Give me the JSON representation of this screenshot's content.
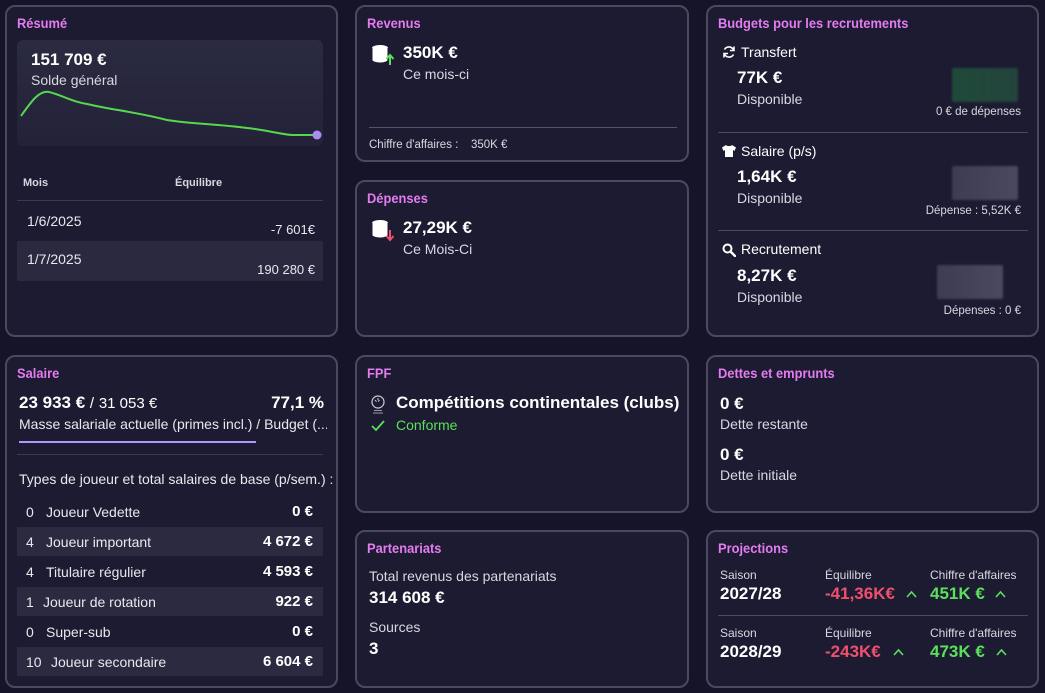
{
  "resume": {
    "title": "Résumé",
    "balance": "151 709 €",
    "balance_label": "Solde général",
    "col_month": "Mois",
    "col_balance": "Équilibre",
    "rows": [
      {
        "month": "1/6/2025",
        "value": "-7 601€"
      },
      {
        "month": "1/7/2025",
        "value": "190 280 €"
      }
    ],
    "line_color": "#56d84e",
    "dot_color": "#a98ef0"
  },
  "revenus": {
    "title": "Revenus",
    "amount": "350K €",
    "period": "Ce mois-ci",
    "footer_label": "Chiffre d'affaires :",
    "footer_value": "350K €"
  },
  "depenses": {
    "title": "Dépenses",
    "amount": "27,29K €",
    "period": "Ce Mois-Ci"
  },
  "budgets": {
    "title": "Budgets pour les recrutements",
    "items": [
      {
        "icon": "refresh-icon",
        "name": "Transfert",
        "amount": "77K €",
        "sub": "Disponible",
        "note": "0 € de dépenses"
      },
      {
        "icon": "shirt-icon",
        "name": "Salaire (p/s)",
        "amount": "1,64K €",
        "sub": "Disponible",
        "note": "Dépense : 5,52K €"
      },
      {
        "icon": "search-icon",
        "name": "Recrutement",
        "amount": "8,27K €",
        "sub": "Disponible",
        "note": "Dépenses : 0 €"
      }
    ]
  },
  "salaire": {
    "title": "Salaire",
    "current": "23 933 €",
    "separator": "/",
    "budget": "31 053 €",
    "percent": "77,1 %",
    "description": "Masse salariale actuelle (primes incl.) / Budget (...",
    "progress": 0.771,
    "types_header": "Types de joueur et total salaires de base (p/sem.) :",
    "types": [
      {
        "count": "0",
        "name": "Joueur Vedette",
        "value": "0 €"
      },
      {
        "count": "4",
        "name": "Joueur important",
        "value": "4 672 €"
      },
      {
        "count": "4",
        "name": "Titulaire régulier",
        "value": "4 593 €"
      },
      {
        "count": "1",
        "name": "Joueur de rotation",
        "value": "922 €"
      },
      {
        "count": "0",
        "name": "Super-sub",
        "value": "0 €"
      },
      {
        "count": "10",
        "name": "Joueur secondaire",
        "value": "6 604 €"
      }
    ]
  },
  "fpf": {
    "title": "FPF",
    "competition": "Compétitions continentales (clubs)",
    "status": "Conforme"
  },
  "dettes": {
    "title": "Dettes et emprunts",
    "remaining_amount": "0 €",
    "remaining_label": "Dette restante",
    "initial_amount": "0 €",
    "initial_label": "Dette initiale"
  },
  "partenariats": {
    "title": "Partenariats",
    "total_label": "Total revenus des partenariats",
    "total_value": "314 608 €",
    "sources_label": "Sources",
    "sources_value": "3"
  },
  "projections": {
    "title": "Projections",
    "col_season": "Saison",
    "col_balance": "Équilibre",
    "col_revenue": "Chiffre d'affaires",
    "rows": [
      {
        "season": "2027/28",
        "balance": "-41,36K€",
        "revenue": "451K €"
      },
      {
        "season": "2028/29",
        "balance": "-243K€",
        "revenue": "473K €"
      }
    ]
  }
}
